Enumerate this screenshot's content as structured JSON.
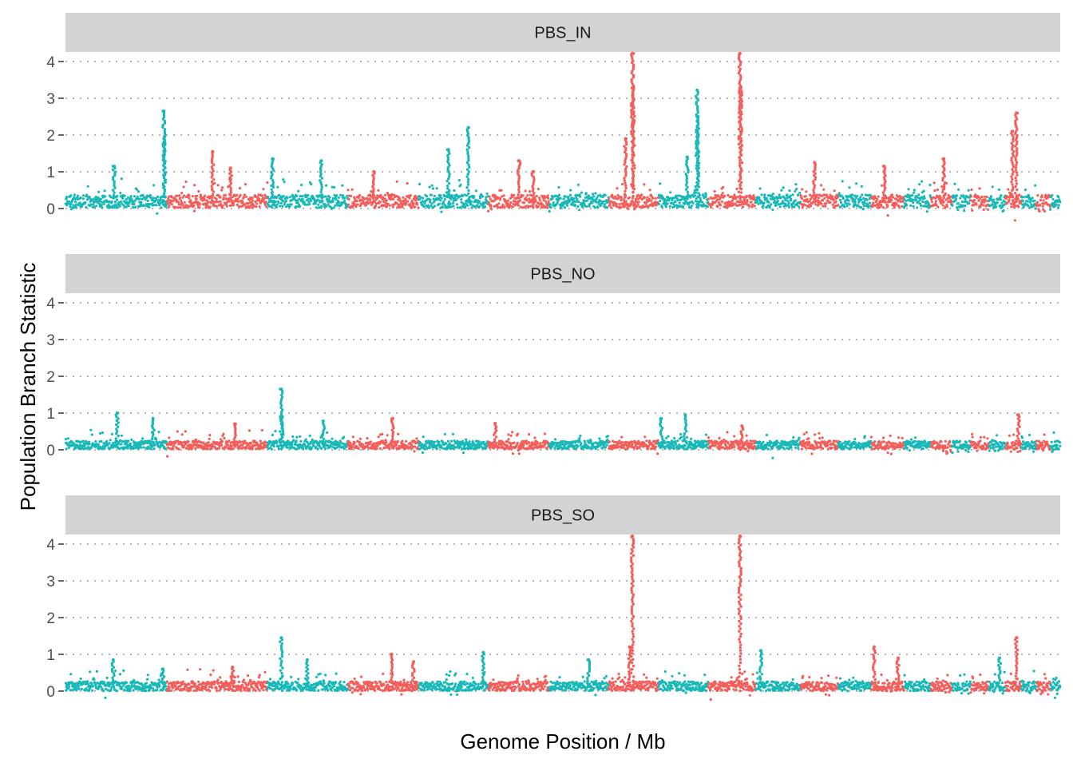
{
  "chart_data": {
    "type": "scatter",
    "xlabel": "Genome Position / Mb",
    "ylabel": "Population Branch Statistic",
    "ylim": [
      -0.4,
      4.3
    ],
    "yticks": [
      0,
      1,
      2,
      3,
      4
    ],
    "grid": "horizontal dotted major",
    "legend": "none",
    "series_colors": [
      "#19B8B8",
      "#F45E5A"
    ],
    "chromosomes": [
      {
        "start": 0.0,
        "end": 10.2,
        "color": "#19B8B8"
      },
      {
        "start": 10.2,
        "end": 20.3,
        "color": "#F45E5A"
      },
      {
        "start": 20.3,
        "end": 28.4,
        "color": "#19B8B8"
      },
      {
        "start": 28.4,
        "end": 35.5,
        "color": "#F45E5A"
      },
      {
        "start": 35.5,
        "end": 42.5,
        "color": "#19B8B8"
      },
      {
        "start": 42.5,
        "end": 48.6,
        "color": "#F45E5A"
      },
      {
        "start": 48.6,
        "end": 54.6,
        "color": "#19B8B8"
      },
      {
        "start": 54.6,
        "end": 59.6,
        "color": "#F45E5A"
      },
      {
        "start": 59.6,
        "end": 64.6,
        "color": "#19B8B8"
      },
      {
        "start": 64.6,
        "end": 69.4,
        "color": "#F45E5A"
      },
      {
        "start": 69.4,
        "end": 73.9,
        "color": "#19B8B8"
      },
      {
        "start": 73.9,
        "end": 77.7,
        "color": "#F45E5A"
      },
      {
        "start": 77.7,
        "end": 81.0,
        "color": "#19B8B8"
      },
      {
        "start": 81.0,
        "end": 84.3,
        "color": "#F45E5A"
      },
      {
        "start": 84.3,
        "end": 87.0,
        "color": "#19B8B8"
      },
      {
        "start": 87.0,
        "end": 89.1,
        "color": "#F45E5A"
      },
      {
        "start": 89.1,
        "end": 91.0,
        "color": "#19B8B8"
      },
      {
        "start": 91.0,
        "end": 92.8,
        "color": "#F45E5A"
      },
      {
        "start": 92.8,
        "end": 94.5,
        "color": "#19B8B8"
      },
      {
        "start": 94.5,
        "end": 96.1,
        "color": "#F45E5A"
      },
      {
        "start": 96.1,
        "end": 97.6,
        "color": "#19B8B8"
      },
      {
        "start": 97.6,
        "end": 99.0,
        "color": "#F45E5A"
      },
      {
        "start": 99.0,
        "end": 100.0,
        "color": "#19B8B8"
      }
    ],
    "panels": [
      {
        "name": "PBS_IN",
        "baseline": 0.18,
        "noise": 0.22,
        "peaks": [
          {
            "x": 4.9,
            "y": 1.15
          },
          {
            "x": 9.9,
            "y": 2.65
          },
          {
            "x": 9.95,
            "y": 1.95
          },
          {
            "x": 14.8,
            "y": 1.55
          },
          {
            "x": 16.6,
            "y": 1.1
          },
          {
            "x": 20.8,
            "y": 1.35
          },
          {
            "x": 25.7,
            "y": 1.3
          },
          {
            "x": 31.0,
            "y": 1.0
          },
          {
            "x": 38.5,
            "y": 1.6
          },
          {
            "x": 40.5,
            "y": 2.2
          },
          {
            "x": 45.6,
            "y": 1.3
          },
          {
            "x": 47.0,
            "y": 1.0
          },
          {
            "x": 56.3,
            "y": 1.9
          },
          {
            "x": 57.0,
            "y": 4.3
          },
          {
            "x": 57.1,
            "y": 3.3
          },
          {
            "x": 62.5,
            "y": 1.4
          },
          {
            "x": 63.5,
            "y": 3.22
          },
          {
            "x": 63.6,
            "y": 2.5
          },
          {
            "x": 67.8,
            "y": 4.3
          },
          {
            "x": 67.9,
            "y": 3.3
          },
          {
            "x": 75.3,
            "y": 1.25
          },
          {
            "x": 82.3,
            "y": 1.15
          },
          {
            "x": 88.3,
            "y": 1.35
          },
          {
            "x": 95.2,
            "y": 2.1
          },
          {
            "x": 95.6,
            "y": 2.6
          }
        ]
      },
      {
        "name": "PBS_NO",
        "baseline": 0.12,
        "noise": 0.14,
        "peaks": [
          {
            "x": 5.2,
            "y": 1.0
          },
          {
            "x": 8.8,
            "y": 0.85
          },
          {
            "x": 17.0,
            "y": 0.7
          },
          {
            "x": 21.7,
            "y": 1.65
          },
          {
            "x": 21.8,
            "y": 0.9
          },
          {
            "x": 25.9,
            "y": 0.78
          },
          {
            "x": 32.9,
            "y": 0.85
          },
          {
            "x": 43.2,
            "y": 0.72
          },
          {
            "x": 59.9,
            "y": 0.85
          },
          {
            "x": 62.3,
            "y": 0.95
          },
          {
            "x": 68.0,
            "y": 0.65
          },
          {
            "x": 95.8,
            "y": 0.95
          }
        ]
      },
      {
        "name": "PBS_SO",
        "baseline": 0.12,
        "noise": 0.16,
        "peaks": [
          {
            "x": 4.8,
            "y": 0.85
          },
          {
            "x": 9.8,
            "y": 0.6
          },
          {
            "x": 16.8,
            "y": 0.65
          },
          {
            "x": 21.7,
            "y": 1.45
          },
          {
            "x": 24.3,
            "y": 0.85
          },
          {
            "x": 32.8,
            "y": 1.0
          },
          {
            "x": 35.0,
            "y": 0.8
          },
          {
            "x": 42.0,
            "y": 1.05
          },
          {
            "x": 52.6,
            "y": 0.85
          },
          {
            "x": 56.7,
            "y": 1.2
          },
          {
            "x": 57.0,
            "y": 4.25
          },
          {
            "x": 67.8,
            "y": 4.25
          },
          {
            "x": 69.9,
            "y": 1.1
          },
          {
            "x": 81.3,
            "y": 1.2
          },
          {
            "x": 83.7,
            "y": 0.9
          },
          {
            "x": 93.9,
            "y": 0.9
          },
          {
            "x": 95.6,
            "y": 1.45
          }
        ]
      }
    ]
  }
}
